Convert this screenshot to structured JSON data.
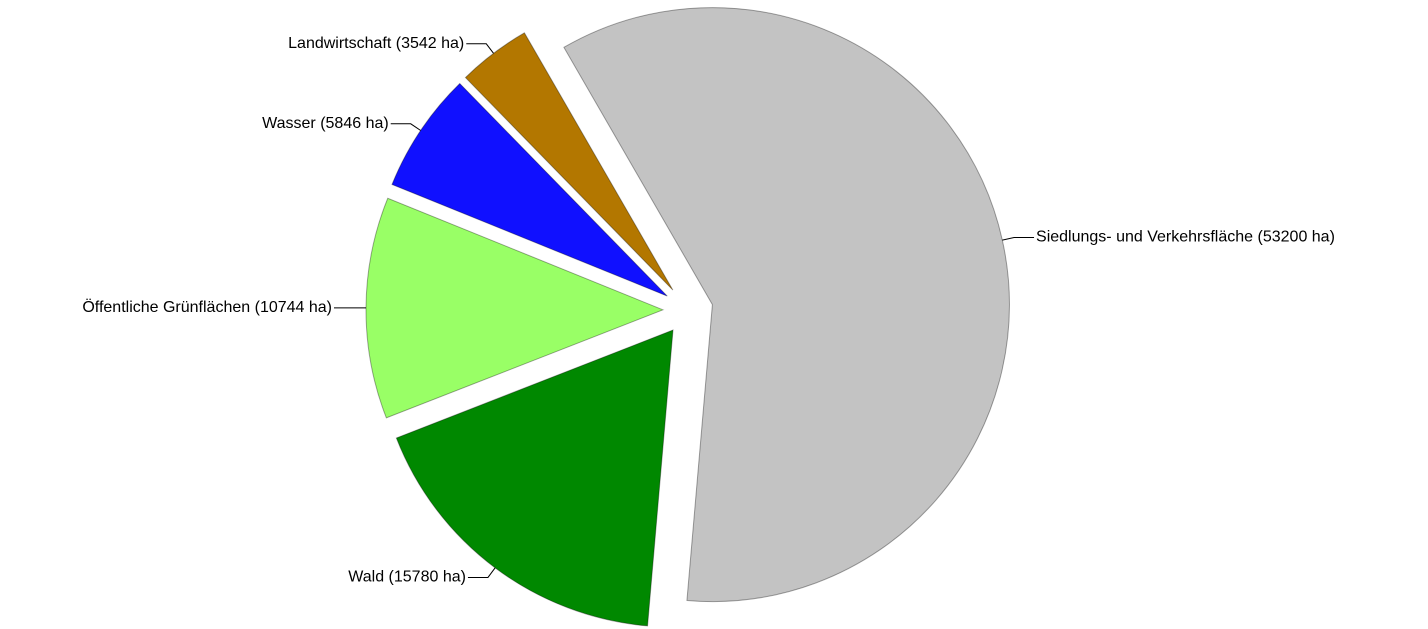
{
  "chart_data": {
    "type": "pie",
    "categories": [
      "Siedlungs- und Verkehrsfläche",
      "Wald",
      "Öffentliche Grünflächen",
      "Wasser",
      "Landwirtschaft"
    ],
    "values": [
      53200,
      15780,
      10744,
      5846,
      3542
    ],
    "value_labels": [
      "(53200 ha)",
      "(15780 ha)",
      "(10744 ha)",
      "(5846 ha)",
      "(3542 ha)"
    ],
    "colors": [
      "#c3c3c3",
      "#008800",
      "#99ff66",
      "#1010ff",
      "#b37700"
    ]
  }
}
